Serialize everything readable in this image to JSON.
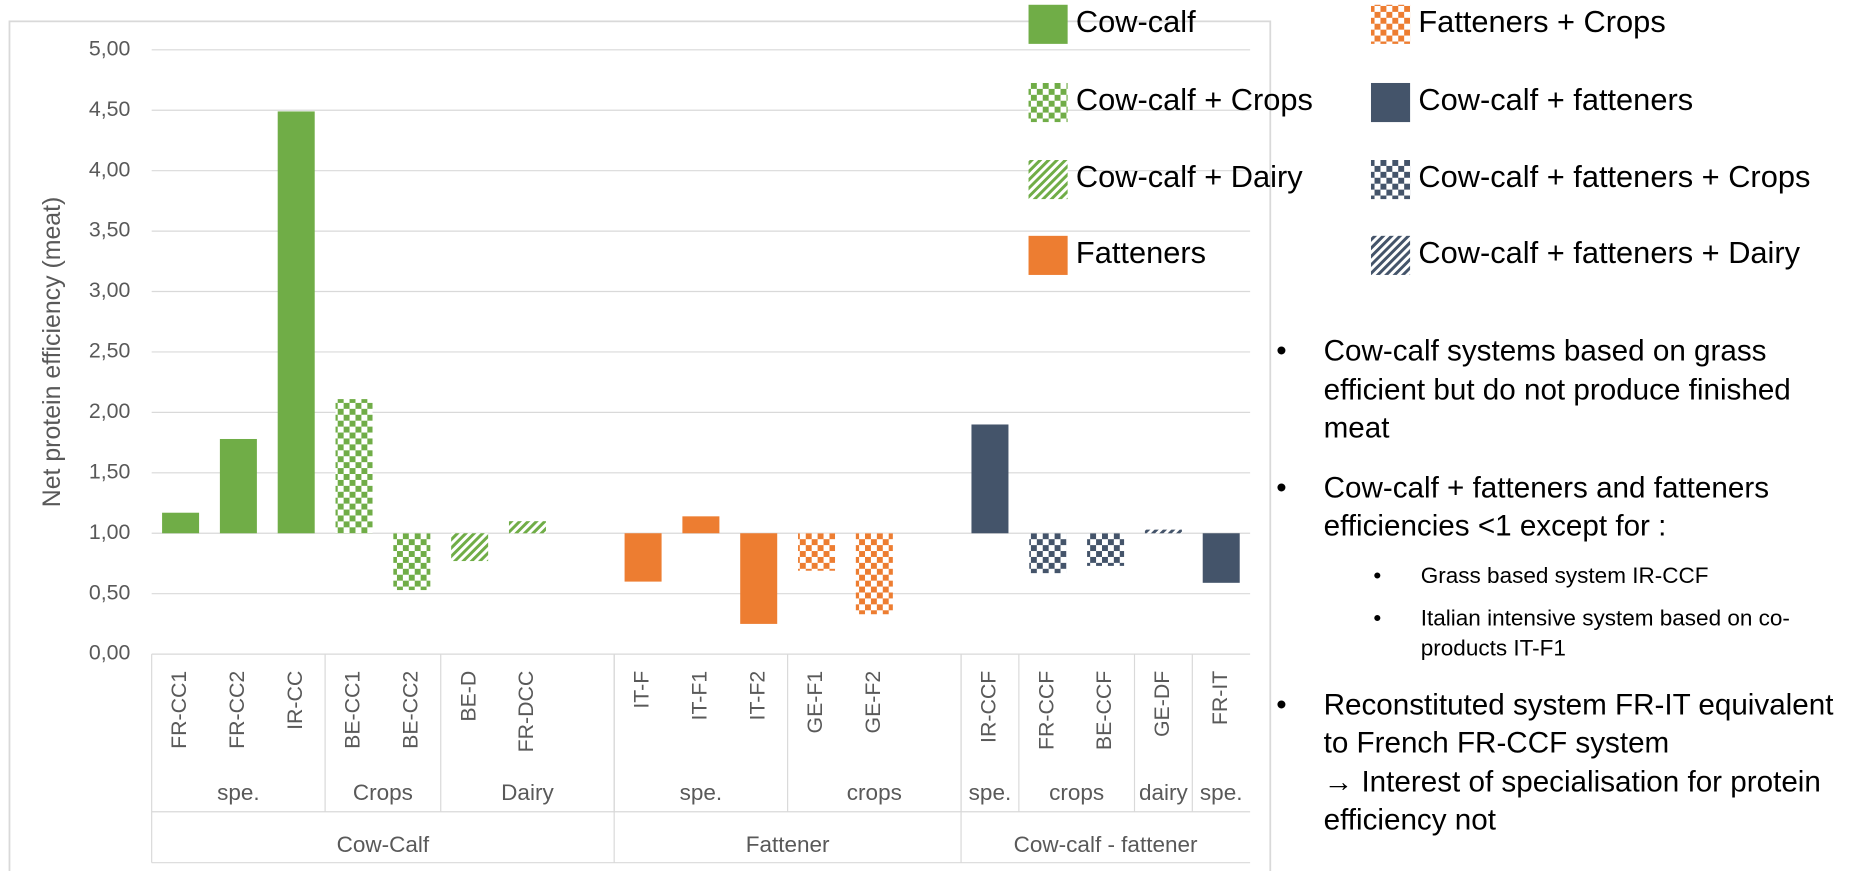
{
  "chart_data": {
    "type": "bar",
    "y_label": "Net protein efficiency (meat)",
    "categories": [
      "FR-CC1",
      "FR-CC2",
      "IR-CC",
      "BE-CC1",
      "BE-CC2",
      "BE-D",
      "FR-DCC",
      null,
      "IT-F",
      "IT-F1",
      "IT-F2",
      "GE-F1",
      "GE-F2",
      null,
      "IR-CCF",
      "FR-CCF",
      "BE-CCF",
      "GE-DF",
      "FR-IT"
    ],
    "subgroups": [
      "spe.",
      "spe.",
      "spe.",
      "Crops",
      "Crops",
      "Dairy",
      "Dairy",
      "Dairy",
      "spe.",
      "spe.",
      "spe.",
      "crops",
      "crops",
      "crops",
      "spe.",
      "crops",
      "crops",
      "dairy",
      "spe."
    ],
    "groups": [
      "Cow-Calf",
      "Cow-Calf",
      "Cow-Calf",
      "Cow-Calf",
      "Cow-Calf",
      "Cow-Calf",
      "Cow-Calf",
      "Cow-Calf",
      "Fattener",
      "Fattener",
      "Fattener",
      "Fattener",
      "Fattener",
      "Fattener",
      "Cow-calf - fattener",
      "Cow-calf - fattener",
      "Cow-calf - fattener",
      "Cow-calf - fattener",
      "Cow-calf - fattener"
    ],
    "bar_base": 1,
    "series": [
      {
        "name": "Cow-calf",
        "color": "#70ad47",
        "pattern": "solid",
        "values": [
          1.17,
          1.78,
          4.49,
          null,
          null,
          null,
          null,
          null,
          null,
          null,
          null,
          null,
          null,
          null,
          null,
          null,
          null,
          null,
          null
        ]
      },
      {
        "name": "Cow-calf + Crops",
        "color": "#70ad47",
        "pattern": "checker",
        "values": [
          null,
          null,
          null,
          2.11,
          0.53,
          null,
          null,
          null,
          null,
          null,
          null,
          null,
          null,
          null,
          null,
          null,
          null,
          null,
          null
        ]
      },
      {
        "name": "Cow-calf + Dairy",
        "color": "#70ad47",
        "pattern": "hatch",
        "values": [
          null,
          null,
          null,
          null,
          null,
          0.77,
          1.1,
          null,
          null,
          null,
          null,
          null,
          null,
          null,
          null,
          null,
          null,
          null,
          null
        ]
      },
      {
        "name": "Fatteners",
        "color": "#ed7d31",
        "pattern": "solid",
        "values": [
          null,
          null,
          null,
          null,
          null,
          null,
          null,
          null,
          0.6,
          1.14,
          0.25,
          null,
          null,
          null,
          null,
          null,
          null,
          null,
          null
        ]
      },
      {
        "name": "Fatteners + Crops",
        "color": "#ed7d31",
        "pattern": "checker",
        "values": [
          null,
          null,
          null,
          null,
          null,
          null,
          null,
          null,
          null,
          null,
          null,
          0.69,
          0.33,
          null,
          null,
          null,
          null,
          null,
          null
        ]
      },
      {
        "name": "Cow-calf + fatteners",
        "color": "#44546a",
        "pattern": "solid",
        "values": [
          null,
          null,
          null,
          null,
          null,
          null,
          null,
          null,
          null,
          null,
          null,
          null,
          null,
          null,
          1.9,
          null,
          null,
          null,
          0.59
        ]
      },
      {
        "name": "Cow-calf + fatteners + Crops",
        "color": "#44546a",
        "pattern": "checker",
        "values": [
          null,
          null,
          null,
          null,
          null,
          null,
          null,
          null,
          null,
          null,
          null,
          null,
          null,
          null,
          null,
          0.67,
          0.73,
          null,
          null
        ]
      },
      {
        "name": "Cow-calf + fatteners + Dairy",
        "color": "#44546a",
        "pattern": "hatch",
        "values": [
          null,
          null,
          null,
          null,
          null,
          null,
          null,
          null,
          null,
          null,
          null,
          null,
          null,
          null,
          null,
          null,
          null,
          1.03,
          null
        ]
      }
    ],
    "ylim": [
      0,
      5
    ],
    "yticks": [
      {
        "value": 0,
        "label": "0,00"
      },
      {
        "value": 0.5,
        "label": "0,50"
      },
      {
        "value": 1,
        "label": "1,00"
      },
      {
        "value": 1.5,
        "label": "1,50"
      },
      {
        "value": 2,
        "label": "2,00"
      },
      {
        "value": 2.5,
        "label": "2,50"
      },
      {
        "value": 3,
        "label": "3,00"
      },
      {
        "value": 3.5,
        "label": "3,50"
      },
      {
        "value": 4,
        "label": "4,00"
      },
      {
        "value": 4.5,
        "label": "4,50"
      },
      {
        "value": 5,
        "label": "5,00"
      }
    ],
    "grid": true
  },
  "notes": [
    {
      "text": "Cow-calf systems based on grass efficient but do not produce finished meat"
    },
    {
      "text": "Cow-calf + fatteners and fatteners efficiencies <1 except for :",
      "items": [
        "Grass based system IR-CCF",
        "Italian intensive system based on co-products IT-F1"
      ]
    },
    {
      "text": "Reconstituted system FR-IT equivalent to French FR-CCF system",
      "extra": "→ Interest of specialisation for protein efficiency not"
    }
  ]
}
